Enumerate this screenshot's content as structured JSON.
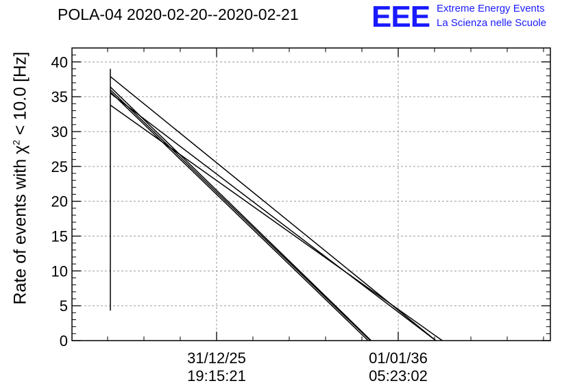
{
  "chart_data": {
    "type": "line",
    "title": "POLA-04 2020-02-20--2020-02-21",
    "ylabel_prefix": "Rate of events with ",
    "ylabel_symbol": "χ",
    "ylabel_sup": "2",
    "ylabel_suffix": " < 10.0 [Hz]",
    "ylim": [
      0,
      42
    ],
    "yticks": [
      0,
      5,
      10,
      15,
      20,
      25,
      30,
      35,
      40
    ],
    "xtick_labels": [
      {
        "line1": "31/12/25",
        "line2": "19:15:21"
      },
      {
        "line1": "01/01/36",
        "line2": "05:23:02"
      }
    ],
    "grid": true,
    "series": [
      {
        "values": [
          [
            0.0,
            4.3
          ],
          [
            0.0,
            39.0
          ]
        ]
      },
      {
        "values": [
          [
            0.0,
            37.9
          ],
          [
            0.755,
            0
          ]
        ]
      },
      {
        "values": [
          [
            0.0,
            36.4
          ],
          [
            0.605,
            0
          ]
        ]
      },
      {
        "values": [
          [
            0.0,
            36.0
          ],
          [
            0.603,
            0
          ]
        ]
      },
      {
        "values": [
          [
            0.0,
            35.7
          ],
          [
            0.598,
            0
          ]
        ]
      },
      {
        "values": [
          [
            0.0,
            35.5
          ],
          [
            0.755,
            0
          ]
        ]
      },
      {
        "values": [
          [
            0.0,
            33.8
          ],
          [
            0.77,
            0
          ]
        ]
      }
    ]
  },
  "logo": {
    "mark": "EEE",
    "line1": "Extreme Energy Events",
    "line2": "La Scienza nelle Scuole"
  }
}
